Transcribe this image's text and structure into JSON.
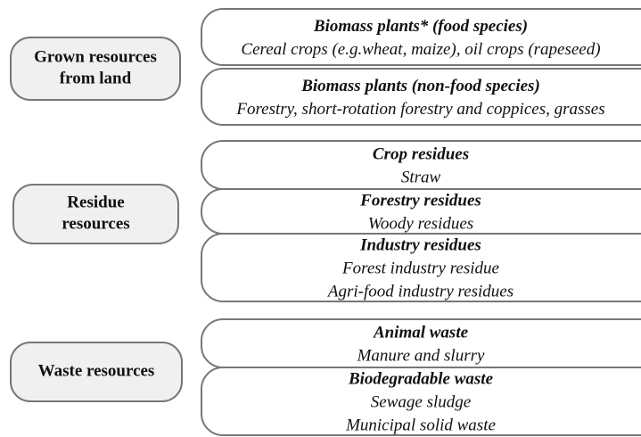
{
  "groups": [
    {
      "label": [
        "Grown resources",
        "from land"
      ],
      "items": [
        {
          "title": "Biomass plants* (food species)",
          "lines": [
            "Cereal crops (e.g.wheat, maize), oil crops (rapeseed)"
          ]
        },
        {
          "title": "Biomass plants (non-food species)",
          "lines": [
            "Forestry, short-rotation forestry and coppices, grasses"
          ]
        }
      ]
    },
    {
      "label": [
        "Residue",
        "resources"
      ],
      "items": [
        {
          "title": "Crop residues",
          "lines": [
            "Straw"
          ]
        },
        {
          "title": "Forestry residues",
          "lines": [
            "Woody residues"
          ]
        },
        {
          "title": "Industry residues",
          "lines": [
            "Forest industry residue",
            "Agri-food industry residues"
          ]
        }
      ]
    },
    {
      "label": [
        "Waste resources"
      ],
      "items": [
        {
          "title": "Animal waste",
          "lines": [
            "Manure and slurry"
          ]
        },
        {
          "title": "Biodegradable waste",
          "lines": [
            "Sewage sludge",
            "Municipal solid waste"
          ]
        }
      ]
    }
  ]
}
